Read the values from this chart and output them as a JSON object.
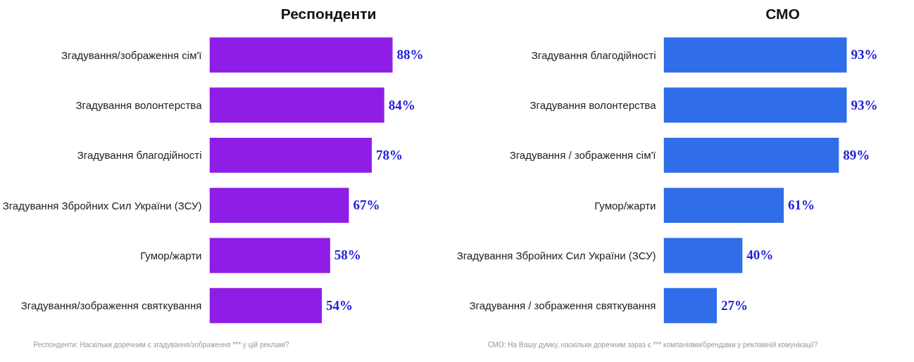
{
  "chart_data": [
    {
      "type": "bar",
      "orientation": "horizontal",
      "title": "Респонденти",
      "categories": [
        "Згадування/зображення сім'ї",
        "Згадування волонтерства",
        "Згадування благодійності",
        "Згадування Збройних Сил України (ЗСУ)",
        "Гумор/жарти",
        "Згадування/зображення святкування"
      ],
      "values": [
        88,
        84,
        78,
        67,
        58,
        54
      ],
      "value_labels": [
        "88%",
        "84%",
        "78%",
        "67%",
        "58%",
        "54%"
      ],
      "color": "#8e1ee6",
      "tick_labels": "y",
      "grid": false,
      "annotations": [
        "Респонденти: Наскільки доречним є згадування/зображення *** у цій рекламі?"
      ]
    },
    {
      "type": "bar",
      "orientation": "horizontal",
      "title": "СМО",
      "categories": [
        "Згадування благодійності",
        "Згадування волонтерства",
        "Згадування / зображення сім'ї",
        "Гумор/жарти",
        "Згадування Збройних Сил України (ЗСУ)",
        "Згадування / зображення святкування"
      ],
      "values": [
        93,
        93,
        89,
        61,
        40,
        27
      ],
      "value_labels": [
        "93%",
        "93%",
        "89%",
        "61%",
        "40%",
        "27%"
      ],
      "color": "#2f6ee8",
      "tick_labels": "y",
      "grid": false,
      "annotations": [
        "СМО: На Вашу думку, наскільки доречним зараз є *** компаніями/брендами у рекламній комунікації?"
      ]
    }
  ]
}
